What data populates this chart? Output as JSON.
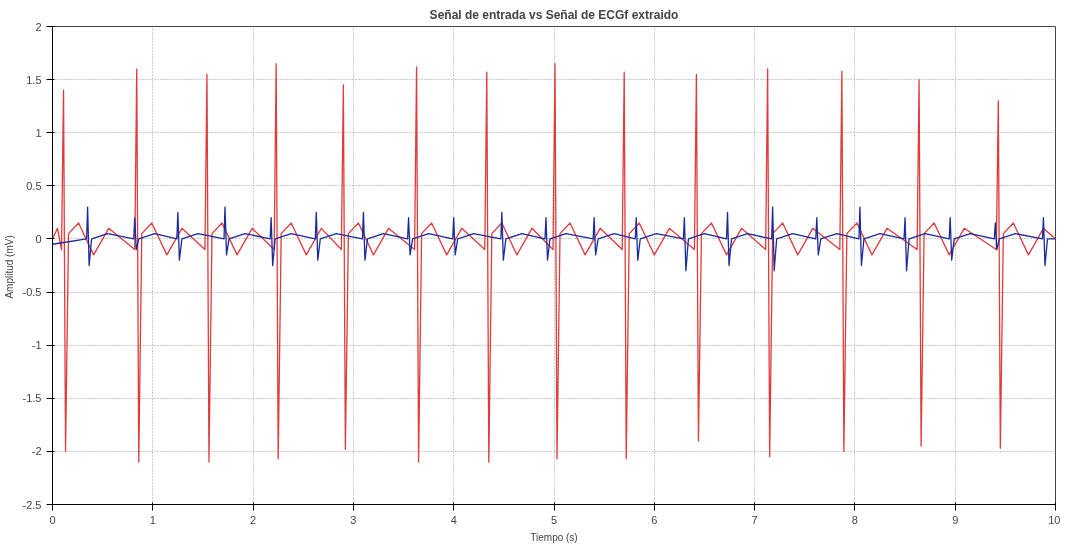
{
  "chart_data": {
    "type": "line",
    "title": "Señal de entrada vs Señal de ECGf extraido",
    "xlabel": "Tiempo (s)",
    "ylabel": "Amplitud  (mV)",
    "xlim": [
      0,
      10
    ],
    "ylim": [
      -2.5,
      2
    ],
    "xticks": [
      0,
      1,
      2,
      3,
      4,
      5,
      6,
      7,
      8,
      9,
      10
    ],
    "yticks": [
      -2.5,
      -2,
      -1.5,
      -1,
      -0.5,
      0,
      0.5,
      1,
      1.5,
      2
    ],
    "grid": true,
    "line_style": "solid",
    "marker": "none",
    "series": [
      {
        "color": "#e03a3a",
        "x": [
          0,
          0.05,
          0.09,
          0.11,
          0.13,
          0.16,
          0.26,
          0.41,
          0.56,
          0.82,
          0.84,
          0.86,
          0.89,
          0.99,
          1.14,
          1.29,
          1.52,
          1.54,
          1.56,
          1.59,
          1.69,
          1.84,
          1.99,
          2.21,
          2.23,
          2.25,
          2.28,
          2.38,
          2.53,
          2.68,
          2.88,
          2.9,
          2.92,
          2.95,
          3.05,
          3.2,
          3.35,
          3.61,
          3.63,
          3.65,
          3.68,
          3.78,
          3.93,
          4.08,
          4.31,
          4.33,
          4.35,
          4.38,
          4.48,
          4.63,
          4.78,
          4.99,
          5.01,
          5.03,
          5.06,
          5.16,
          5.31,
          5.46,
          5.68,
          5.7,
          5.72,
          5.75,
          5.85,
          6.0,
          6.15,
          6.4,
          6.42,
          6.44,
          6.47,
          6.57,
          6.72,
          6.87,
          7.11,
          7.13,
          7.15,
          7.18,
          7.28,
          7.43,
          7.58,
          7.85,
          7.87,
          7.89,
          7.92,
          8.02,
          8.17,
          8.32,
          8.62,
          8.64,
          8.66,
          8.69,
          8.79,
          8.94,
          9.09,
          9.41,
          9.43,
          9.45,
          9.48,
          9.58,
          9.73,
          9.88,
          10
        ],
        "values": [
          0,
          0.1,
          -0.1,
          1.4,
          -2.0,
          0.05,
          0.15,
          -0.15,
          0.1,
          -0.1,
          1.6,
          -2.1,
          0.05,
          0.15,
          -0.15,
          0.1,
          -0.1,
          1.55,
          -2.1,
          0.05,
          0.15,
          -0.15,
          0.1,
          -0.1,
          1.65,
          -2.07,
          0.05,
          0.15,
          -0.15,
          0.1,
          -0.1,
          1.45,
          -1.98,
          0.05,
          0.15,
          -0.15,
          0.1,
          -0.1,
          1.62,
          -2.1,
          0.05,
          0.15,
          -0.15,
          0.1,
          -0.1,
          1.57,
          -2.1,
          0.05,
          0.15,
          -0.15,
          0.1,
          -0.1,
          1.65,
          -2.07,
          0.05,
          0.15,
          -0.15,
          0.1,
          -0.1,
          1.57,
          -2.07,
          0.05,
          0.15,
          -0.15,
          0.1,
          -0.1,
          1.55,
          -1.9,
          0.05,
          0.15,
          -0.15,
          0.1,
          -0.1,
          1.6,
          -2.05,
          0.05,
          0.15,
          -0.15,
          0.1,
          -0.1,
          1.58,
          -2.0,
          0.05,
          0.15,
          -0.15,
          0.1,
          -0.1,
          1.5,
          -1.95,
          0.05,
          0.15,
          -0.15,
          0.1,
          -0.1,
          1.3,
          -1.97,
          0.05,
          0.15,
          -0.15,
          0.1,
          0
        ]
      },
      {
        "color": "#1a2a9c",
        "x": [
          0,
          0.34,
          0.35,
          0.365,
          0.39,
          0.55,
          0.81,
          0.82,
          0.835,
          0.86,
          1.02,
          1.24,
          1.25,
          1.265,
          1.29,
          1.45,
          1.71,
          1.72,
          1.735,
          1.76,
          1.92,
          2.17,
          2.18,
          2.195,
          2.22,
          2.38,
          2.62,
          2.63,
          2.645,
          2.67,
          2.83,
          3.09,
          3.1,
          3.115,
          3.14,
          3.3,
          3.54,
          3.55,
          3.565,
          3.59,
          3.75,
          3.99,
          4.0,
          4.015,
          4.04,
          4.2,
          4.47,
          4.48,
          4.495,
          4.52,
          4.68,
          4.91,
          4.92,
          4.935,
          4.96,
          5.12,
          5.39,
          5.4,
          5.415,
          5.44,
          5.6,
          5.81,
          5.82,
          5.835,
          5.86,
          6.02,
          6.29,
          6.3,
          6.315,
          6.34,
          6.5,
          6.72,
          6.73,
          6.745,
          6.77,
          6.93,
          7.17,
          7.18,
          7.195,
          7.22,
          7.38,
          7.61,
          7.62,
          7.635,
          7.66,
          7.82,
          8.04,
          8.05,
          8.065,
          8.09,
          8.25,
          8.49,
          8.5,
          8.515,
          8.54,
          8.7,
          8.94,
          8.95,
          8.965,
          8.99,
          9.15,
          9.39,
          9.4,
          9.415,
          9.44,
          9.6,
          9.87,
          9.88,
          9.895,
          9.92,
          10
        ],
        "values": [
          -0.05,
          0,
          0.3,
          -0.25,
          0,
          0.05,
          0,
          0.2,
          -0.1,
          0,
          0.05,
          0,
          0.25,
          -0.2,
          0,
          0.05,
          0,
          0.3,
          -0.15,
          0,
          0.05,
          0,
          0.2,
          -0.25,
          0,
          0.05,
          0,
          0.25,
          -0.2,
          0,
          0.05,
          0,
          0.25,
          -0.2,
          0,
          0.05,
          0,
          0.2,
          -0.15,
          0,
          0.05,
          0,
          0.2,
          -0.15,
          0,
          0.05,
          0,
          0.25,
          -0.2,
          0,
          0.05,
          0,
          0.2,
          -0.2,
          0,
          0.05,
          0,
          0.2,
          -0.15,
          0,
          0.05,
          0,
          0.2,
          -0.2,
          0,
          0.05,
          0,
          0.2,
          -0.3,
          0,
          0.05,
          0,
          0.25,
          -0.25,
          0,
          0.05,
          0,
          0.3,
          -0.3,
          0,
          0.05,
          0,
          0.2,
          -0.15,
          0,
          0.05,
          0,
          0.3,
          -0.25,
          0,
          0.05,
          0,
          0.2,
          -0.3,
          0,
          0.05,
          0,
          0.2,
          -0.2,
          0,
          0.05,
          0,
          0.15,
          -0.1,
          0,
          0.05,
          0,
          0.2,
          -0.25,
          0,
          0
        ]
      }
    ]
  }
}
